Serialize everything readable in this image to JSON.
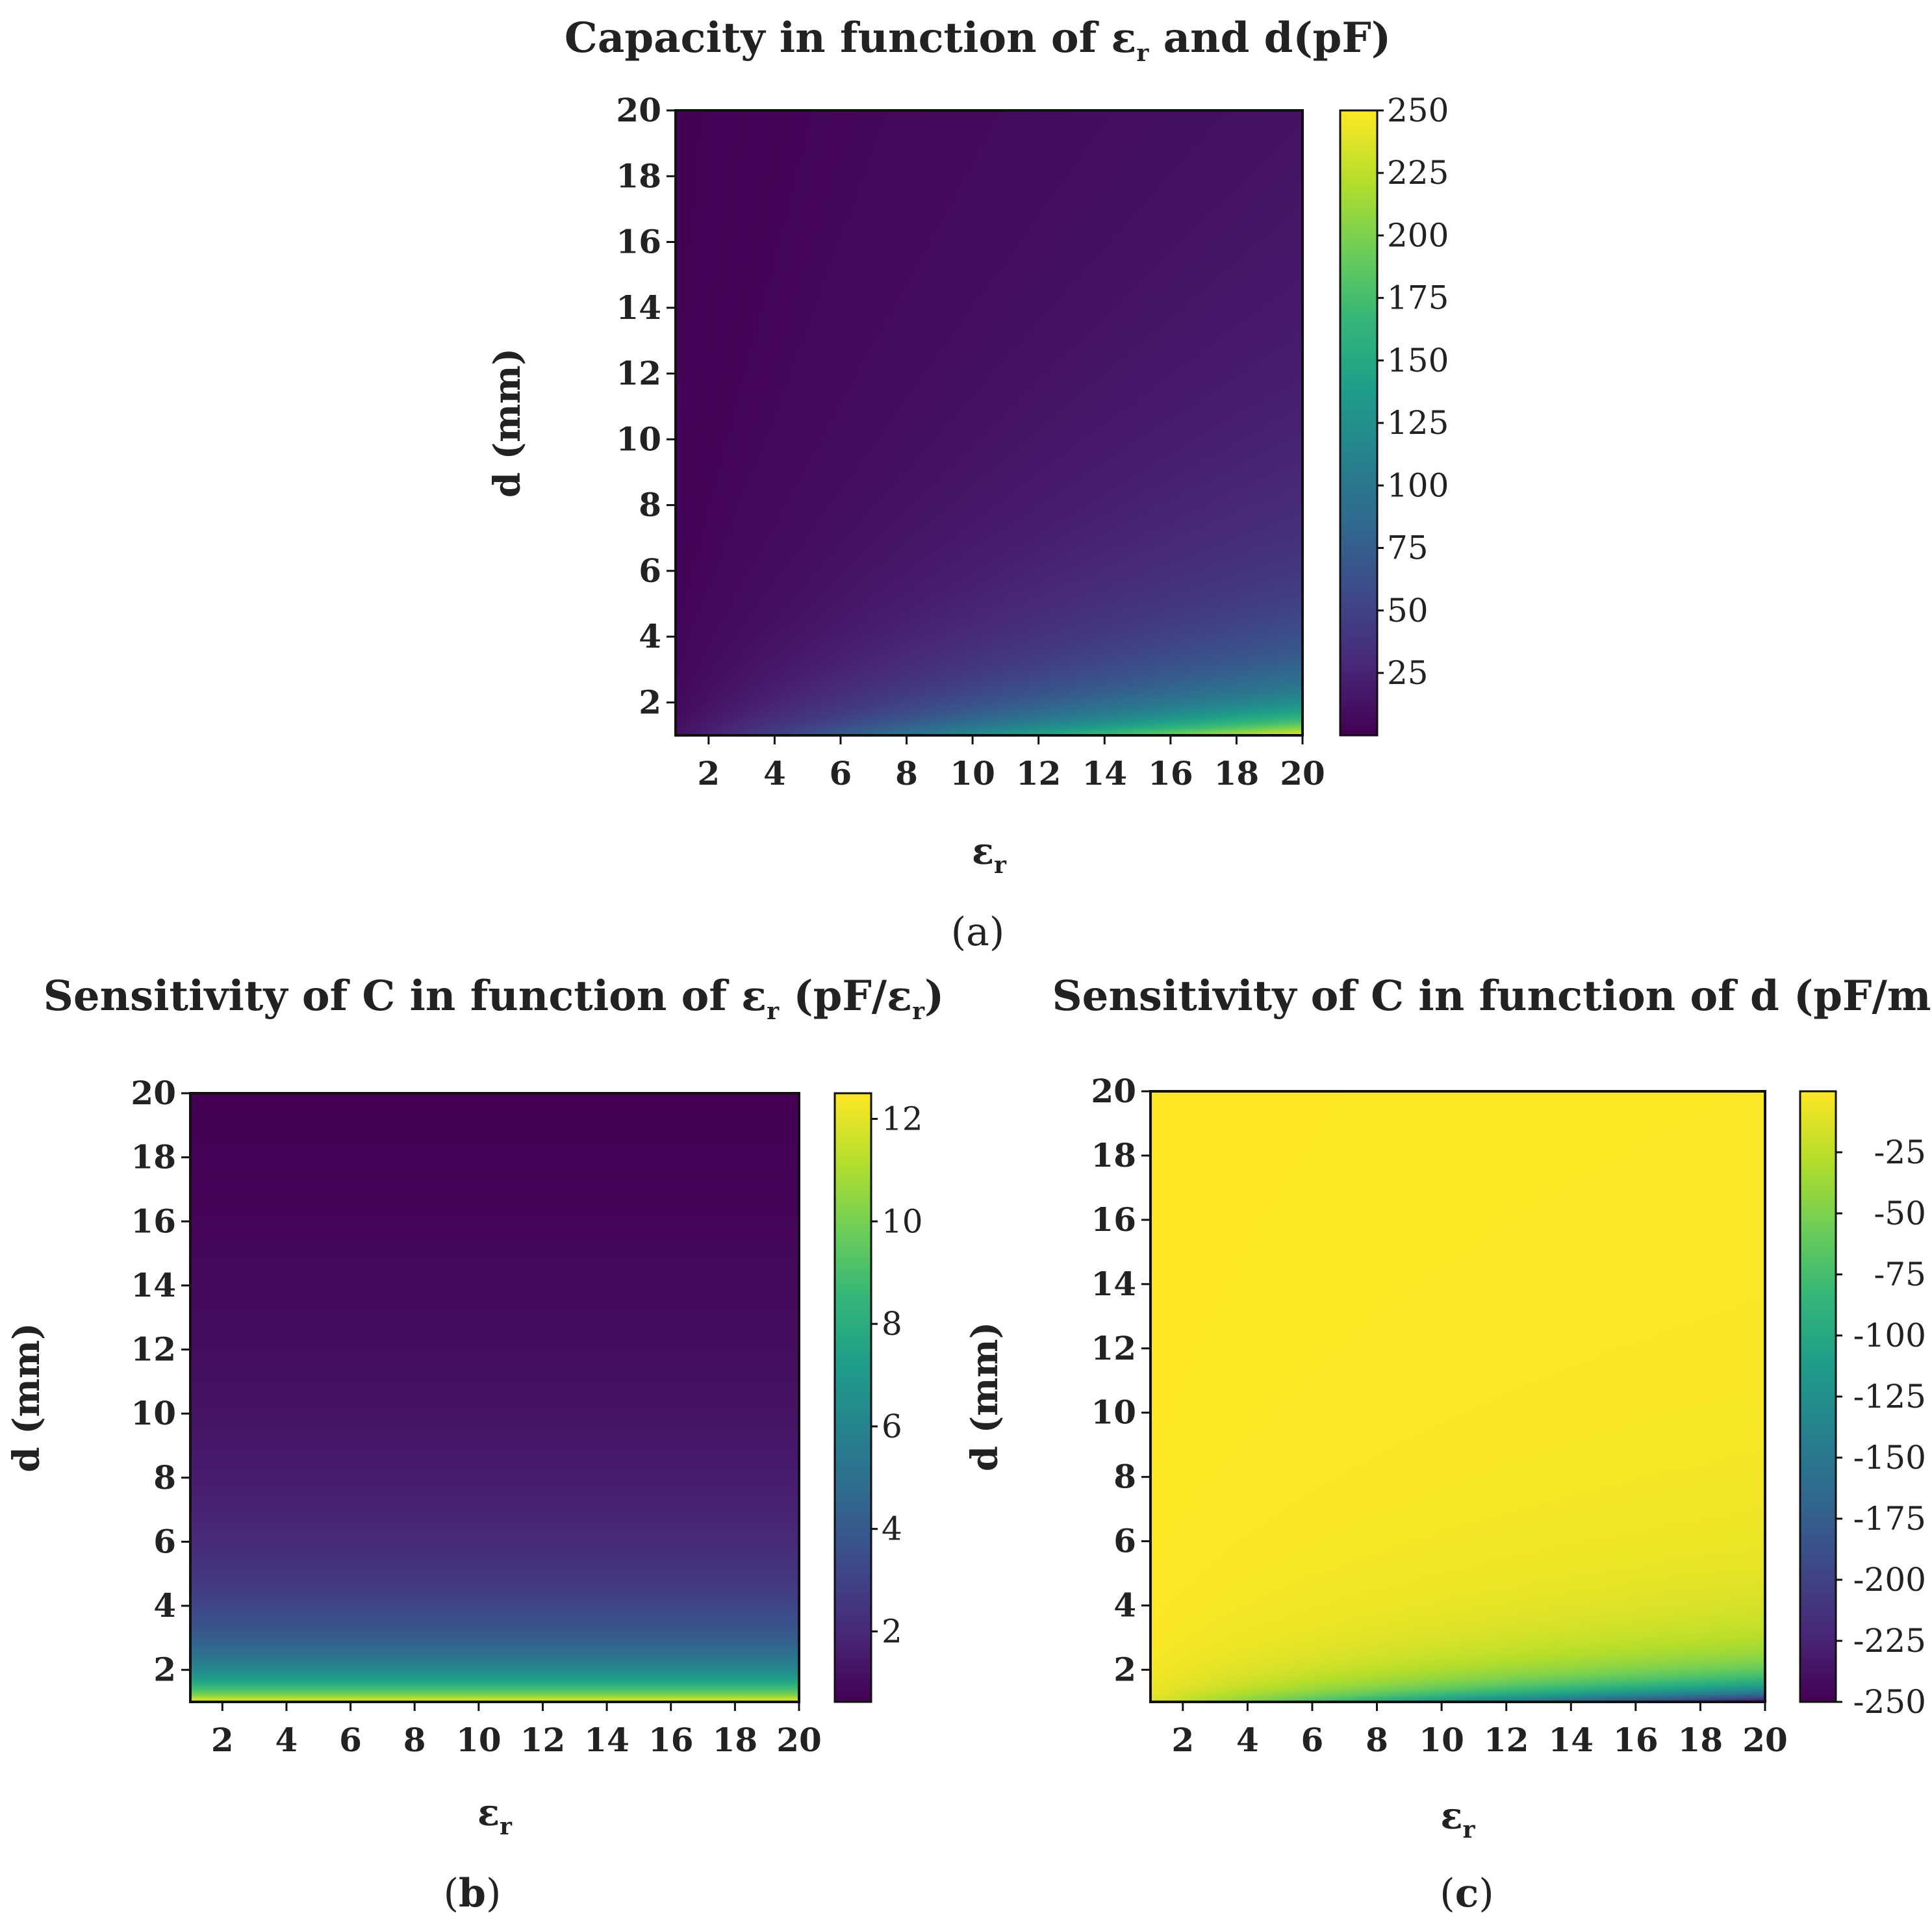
{
  "colormap": [
    "#440154",
    "#482878",
    "#3e4989",
    "#31688e",
    "#26828e",
    "#1f9e89",
    "#35b779",
    "#6ece58",
    "#b5de2b",
    "#fde725"
  ],
  "chart_data": [
    {
      "id": "a",
      "type": "heatmap",
      "panel_label": "(a)",
      "title": {
        "main": "Capacity in function of ε",
        "sub": "r",
        "tail": " and d(pF)"
      },
      "xlabel": {
        "main": "ε",
        "sub": "r"
      },
      "ylabel": "d (mm)",
      "xlim": [
        1,
        20
      ],
      "ylim": [
        1,
        20
      ],
      "xticks": [
        "2",
        "4",
        "6",
        "8",
        "10",
        "12",
        "14",
        "16",
        "18",
        "20"
      ],
      "yticks": [
        "2",
        "4",
        "6",
        "8",
        "10",
        "12",
        "14",
        "16",
        "18",
        "20"
      ],
      "z_formula": "C = 12.5 * er / d",
      "colorbar": {
        "range": [
          0.05,
          250
        ],
        "ticks": [
          "25",
          "50",
          "75",
          "100",
          "125",
          "150",
          "175",
          "200",
          "225",
          "250"
        ]
      }
    },
    {
      "id": "b",
      "type": "heatmap",
      "panel_label": "(b)",
      "title": {
        "main": "Sensitivity of  C in function of ε",
        "sub": "r",
        "tail": " (pF/ε",
        "sub2": "r",
        "tail2": ")"
      },
      "xlabel": {
        "main": "ε",
        "sub": "r"
      },
      "ylabel": "d (mm)",
      "xlim": [
        1,
        20
      ],
      "ylim": [
        1,
        20
      ],
      "xticks": [
        "2",
        "4",
        "6",
        "8",
        "10",
        "12",
        "14",
        "16",
        "18",
        "20"
      ],
      "yticks": [
        "2",
        "4",
        "6",
        "8",
        "10",
        "12",
        "14",
        "16",
        "18",
        "20"
      ],
      "z_formula": "dC/der = 12.5 / d",
      "colorbar": {
        "range": [
          0.625,
          12.5
        ],
        "ticks": [
          "2",
          "4",
          "6",
          "8",
          "10",
          "12"
        ]
      }
    },
    {
      "id": "c",
      "type": "heatmap",
      "panel_label": "(c)",
      "title": {
        "main": "Sensitivity of  C in function of d (pF/mm)"
      },
      "xlabel": {
        "main": "ε",
        "sub": "r"
      },
      "ylabel": "d (mm)",
      "xlim": [
        1,
        20
      ],
      "ylim": [
        1,
        20
      ],
      "xticks": [
        "2",
        "4",
        "6",
        "8",
        "10",
        "12",
        "14",
        "16",
        "18",
        "20"
      ],
      "yticks": [
        "2",
        "4",
        "6",
        "8",
        "10",
        "12",
        "14",
        "16",
        "18",
        "20"
      ],
      "z_formula": "dC/dd = -12.5 * er / d^2",
      "colorbar": {
        "range": [
          -250,
          -0.03
        ],
        "ticks": [
          "-25",
          "-50",
          "-75",
          "-100",
          "-125",
          "-150",
          "-175",
          "-200",
          "-225",
          "-250"
        ]
      }
    }
  ]
}
